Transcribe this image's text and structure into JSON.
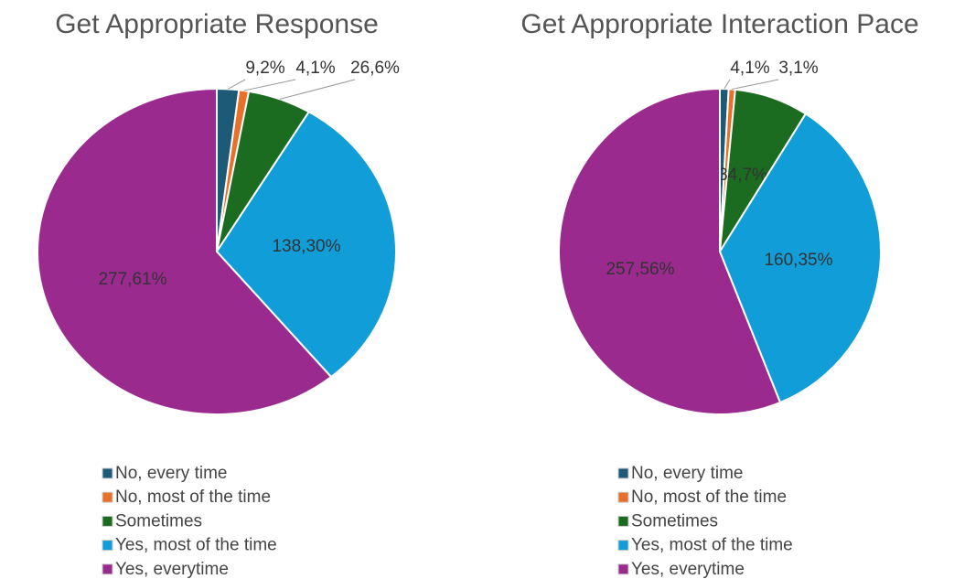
{
  "chart_data": [
    {
      "type": "pie",
      "title": "Get Appropriate Response",
      "categories": [
        "No, every time",
        "No, most of the time",
        "Sometimes",
        "Yes, most of the time",
        "Yes, everytime"
      ],
      "values": [
        9,
        4,
        26,
        138,
        277
      ],
      "value_labels": [
        "9,2%",
        "4,1%",
        "26,6%",
        "138,30%",
        "277,61%"
      ],
      "colors": [
        "#1d5a78",
        "#e8702a",
        "#1b6b21",
        "#119dd8",
        "#9b2a8f"
      ],
      "legend": "bottom"
    },
    {
      "type": "pie",
      "title": "Get Appropriate Interaction Pace",
      "categories": [
        "No, every time",
        "No, most of the time",
        "Sometimes",
        "Yes, most of the time",
        "Yes, everytime"
      ],
      "values": [
        4,
        3,
        34,
        160,
        257
      ],
      "value_labels": [
        "4,1%",
        "3,1%",
        "34,7%",
        "160,35%",
        "257,56%"
      ],
      "colors": [
        "#1d5a78",
        "#e8702a",
        "#1b6b21",
        "#119dd8",
        "#9b2a8f"
      ],
      "legend": "bottom"
    }
  ]
}
